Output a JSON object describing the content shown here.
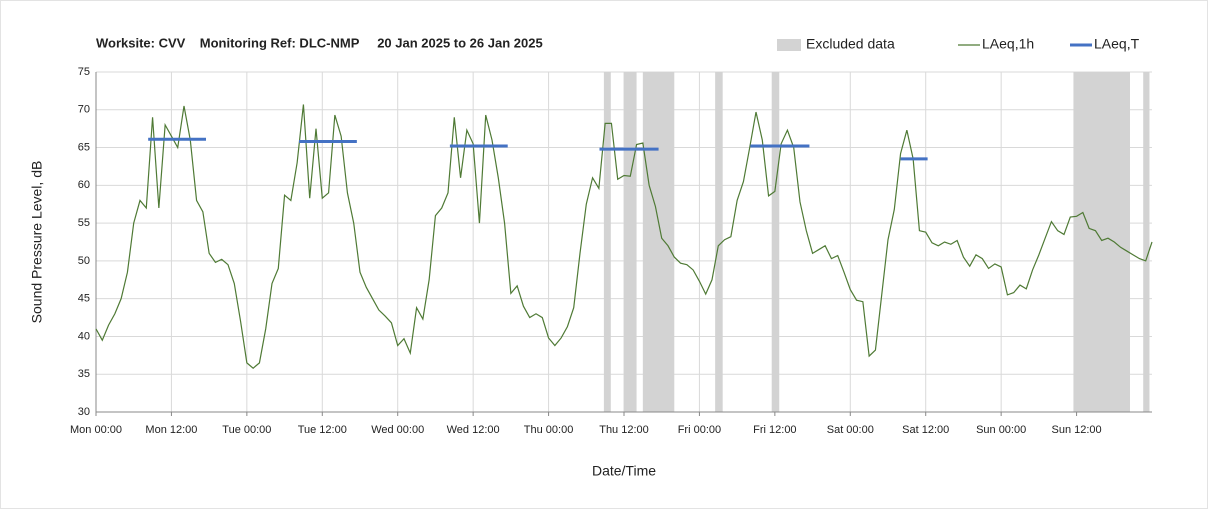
{
  "chart_data": {
    "type": "line",
    "title": "Worksite: CVV    Monitoring Ref: DLC-NMP     20 Jan 2025 to 26 Jan 2025",
    "xlabel": "Date/Time",
    "ylabel": "Sound Pressure Level, dB",
    "xlim": [
      0,
      168
    ],
    "ylim": [
      30,
      75
    ],
    "yticks": [
      30,
      35,
      40,
      45,
      50,
      55,
      60,
      65,
      70,
      75
    ],
    "xticks": [
      {
        "value": 0,
        "label": "Mon 00:00"
      },
      {
        "value": 12,
        "label": "Mon 12:00"
      },
      {
        "value": 24,
        "label": "Tue 00:00"
      },
      {
        "value": 36,
        "label": "Tue 12:00"
      },
      {
        "value": 48,
        "label": "Wed 00:00"
      },
      {
        "value": 60,
        "label": "Wed 12:00"
      },
      {
        "value": 72,
        "label": "Thu 00:00"
      },
      {
        "value": 84,
        "label": "Thu 12:00"
      },
      {
        "value": 96,
        "label": "Fri 00:00"
      },
      {
        "value": 108,
        "label": "Fri 12:00"
      },
      {
        "value": 120,
        "label": "Sat 00:00"
      },
      {
        "value": 132,
        "label": "Sat 12:00"
      },
      {
        "value": 144,
        "label": "Sun 00:00"
      },
      {
        "value": 156,
        "label": "Sun 12:00"
      }
    ],
    "grid": true,
    "legend": "top-right",
    "excluded": {
      "name": "Excluded data",
      "color": "#d3d3d3",
      "ranges": [
        [
          80.8,
          81.9
        ],
        [
          84,
          86
        ],
        [
          87,
          92
        ],
        [
          98.5,
          99.7
        ],
        [
          107.5,
          108.7
        ],
        [
          155.5,
          164.5
        ],
        [
          166.6,
          167.6
        ]
      ]
    },
    "series": [
      {
        "name": "LAeq,1h",
        "color": "#4f7a35",
        "x": [
          0,
          1,
          2,
          3,
          4,
          5,
          6,
          7,
          8,
          9,
          10,
          11,
          12,
          13,
          14,
          15,
          16,
          17,
          18,
          19,
          20,
          21,
          22,
          23,
          24,
          25,
          26,
          27,
          28,
          29,
          30,
          31,
          32,
          33,
          34,
          35,
          36,
          37,
          38,
          39,
          40,
          41,
          42,
          43,
          44,
          45,
          46,
          47,
          48,
          49,
          50,
          51,
          52,
          53,
          54,
          55,
          56,
          57,
          58,
          59,
          60,
          61,
          62,
          63,
          64,
          65,
          66,
          67,
          68,
          69,
          70,
          71,
          72,
          73,
          74,
          75,
          76,
          77,
          78,
          79,
          80,
          81,
          82,
          83,
          84,
          85,
          86,
          87,
          88,
          89,
          90,
          91,
          92,
          93,
          94,
          95,
          96,
          97,
          98,
          99,
          100,
          101,
          102,
          103,
          104,
          105,
          106,
          107,
          108,
          109,
          110,
          111,
          112,
          113,
          114,
          115,
          116,
          117,
          118,
          119,
          120,
          121,
          122,
          123,
          124,
          125,
          126,
          127,
          128,
          129,
          130,
          131,
          132,
          133,
          134,
          135,
          136,
          137,
          138,
          139,
          140,
          141,
          142,
          143,
          144,
          145,
          146,
          147,
          148,
          149,
          150,
          151,
          152,
          153,
          154,
          155,
          156,
          157,
          158,
          159,
          160,
          161,
          162,
          163,
          164,
          165,
          166,
          167,
          168
        ],
        "values": [
          41,
          39.5,
          41.5,
          43,
          45,
          48.5,
          55,
          58,
          57,
          69,
          57,
          68,
          66.5,
          65,
          70.5,
          66,
          58,
          56.5,
          51,
          49.8,
          50.2,
          49.5,
          47,
          42,
          36.5,
          35.8,
          36.5,
          41,
          47,
          49,
          58.7,
          58,
          63,
          70.7,
          58.3,
          67.5,
          58.3,
          59,
          69.3,
          66.5,
          59,
          55,
          48.5,
          46.5,
          45,
          43.5,
          42.7,
          41.8,
          38.8,
          39.7,
          37.8,
          43.8,
          42.3,
          47.5,
          56,
          57,
          59,
          69,
          61,
          67.3,
          65.5,
          55,
          69.3,
          66,
          61,
          55,
          45.7,
          46.7,
          44,
          42.5,
          43,
          42.5,
          39.8,
          38.8,
          39.8,
          41.3,
          43.8,
          51,
          57.5,
          61,
          59.6,
          68.2,
          68.2,
          60.8,
          61.3,
          61.2,
          65.4,
          65.6,
          60,
          57.2,
          53,
          52,
          50.5,
          49.7,
          49.5,
          48.8,
          47.3,
          45.6,
          47.5,
          52,
          52.8,
          53.2,
          58,
          60.5,
          65,
          69.7,
          66,
          58.6,
          59.2,
          65.5,
          67.3,
          65,
          57.8,
          54,
          51,
          51.5,
          52,
          50.3,
          50.7,
          48.5,
          46.2,
          44.8,
          44.6,
          37.4,
          38.2,
          45.5,
          52.8,
          56.8,
          64.2,
          67.3,
          63.5,
          54,
          53.8,
          52.4,
          52,
          52.5,
          52.2,
          52.7,
          50.5,
          49.3,
          50.8,
          50.3,
          49,
          49.6,
          49.2,
          45.5,
          45.8,
          46.8,
          46.3,
          48.8,
          50.8,
          53,
          55.2,
          54,
          53.5,
          55.8,
          55.9,
          56.4,
          54.3,
          54,
          52.7,
          53,
          52.5,
          51.8,
          51.3,
          50.8,
          50.3,
          50,
          52.5
        ]
      },
      {
        "name": "LAeq,T",
        "color": "#4472c4",
        "segments": [
          {
            "x": [
              8.3,
              17.5
            ],
            "values": [
              66.1,
              66.1
            ]
          },
          {
            "x": [
              32.3,
              41.5
            ],
            "values": [
              65.8,
              65.8
            ]
          },
          {
            "x": [
              56.3,
              65.5
            ],
            "values": [
              65.2,
              65.2
            ]
          },
          {
            "x": [
              80.1,
              89.5
            ],
            "values": [
              64.8,
              64.8
            ]
          },
          {
            "x": [
              104.1,
              113.5
            ],
            "values": [
              65.2,
              65.2
            ]
          },
          {
            "x": [
              128,
              132.3
            ],
            "values": [
              63.5,
              63.5
            ]
          }
        ]
      }
    ]
  }
}
